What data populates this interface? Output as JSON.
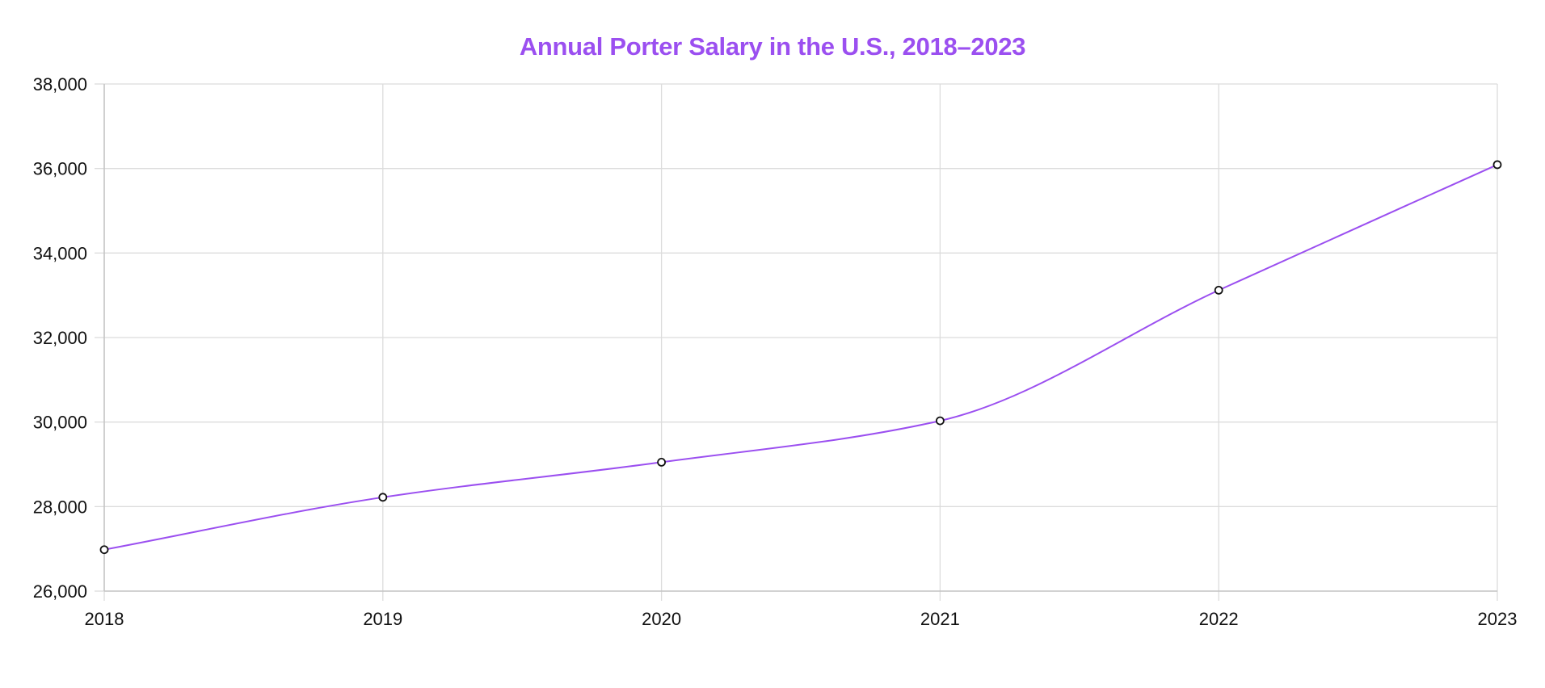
{
  "chart_data": {
    "type": "line",
    "title": "Annual Porter Salary in the U.S., 2018–2023",
    "xlabel": "",
    "ylabel": "",
    "categories": [
      "2018",
      "2019",
      "2020",
      "2021",
      "2022",
      "2023"
    ],
    "series": [
      {
        "values": [
          26980,
          28220,
          29050,
          30030,
          33120,
          36090
        ]
      }
    ],
    "ylim": [
      26000,
      38000
    ],
    "yticks": [
      26000,
      28000,
      30000,
      32000,
      34000,
      36000,
      38000
    ],
    "ytick_labels": [
      "26,000",
      "28,000",
      "30,000",
      "32,000",
      "34,000",
      "36,000",
      "38,000"
    ],
    "grid": true,
    "legend": "none",
    "smooth": true
  },
  "colors": {
    "title": "#9b4ff0",
    "line": "#9b4ff0",
    "point_fill": "#ffffff",
    "point_stroke": "#111111"
  }
}
